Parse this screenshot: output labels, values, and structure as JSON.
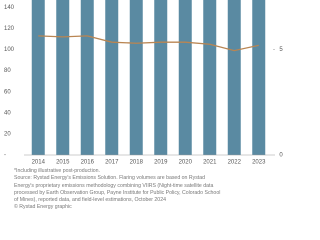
{
  "chart_data": {
    "type": "bar_line",
    "categories": [
      "2014",
      "2015",
      "2016",
      "2017",
      "2018",
      "2019",
      "2020",
      "2021",
      "2022",
      "2023"
    ],
    "series": [
      {
        "type": "bar",
        "color": "#5a8aa2",
        "values": [
          150,
          150,
          150,
          150,
          150,
          150,
          150,
          150,
          150,
          150
        ]
      },
      {
        "type": "line",
        "axis": "y2",
        "color": "#b98552",
        "values": [
          5.65,
          5.6,
          5.65,
          5.35,
          5.3,
          5.35,
          5.35,
          5.25,
          4.95,
          5.2
        ]
      }
    ],
    "ylim": [
      0,
      147
    ],
    "yticks": [
      {
        "value": 0,
        "label": "-"
      },
      20,
      40,
      60,
      80,
      100,
      120,
      140
    ],
    "y2lim": [
      0,
      7.35
    ],
    "y2ticks": [
      0,
      5
    ],
    "notes": [
      "*Including illustrative post-production.",
      "Source: Rystad Energy's Emissions Solution. Flaring volumes are based on Rystad",
      "Energy's proprietary emissions methodology combining VIIRS (Night-time satellite data",
      "processed by Earth Observation Group, Payne Institute for Public Policy, Colorado School",
      "of Mines), reported data, and field-level estimations, October 2024",
      "© Rystad Energy graphic"
    ]
  }
}
